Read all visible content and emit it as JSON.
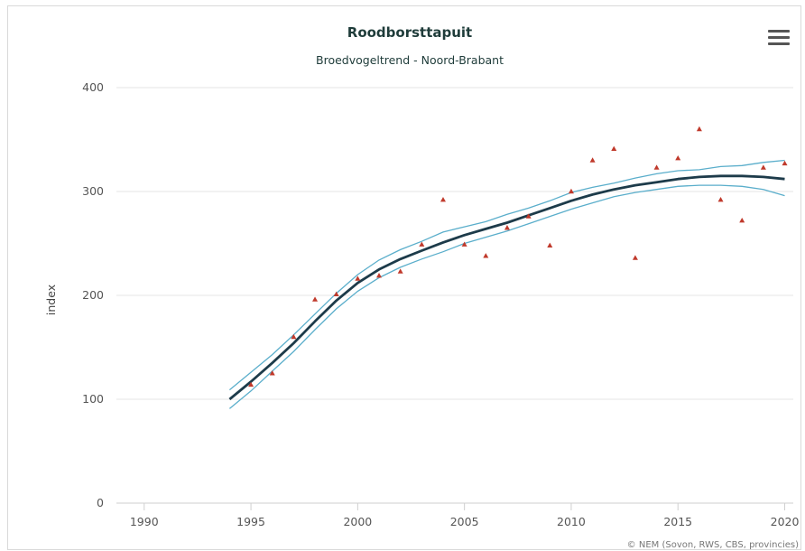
{
  "chart_data": {
    "type": "line",
    "title": "Roodborsttapuit",
    "subtitle": "Broedvogeltrend - Noord-Brabant",
    "xlabel": "",
    "ylabel": "index",
    "xlim": [
      1988.7,
      2020.4
    ],
    "ylim": [
      0,
      400
    ],
    "x_ticks": [
      1990,
      1995,
      2000,
      2005,
      2010,
      2015,
      2020
    ],
    "y_ticks": [
      0,
      100,
      200,
      300,
      400
    ],
    "grid": "horizontal",
    "credits": "© NEM (Sovon, RWS, CBS, provincies)",
    "colors": {
      "trend": "#1d3b4a",
      "band": "#5aaecb",
      "points": "#c0392b",
      "grid": "#e6e6e6",
      "title": "#1f3c3a"
    },
    "series": [
      {
        "kind": "trend",
        "x": [
          1994,
          1995,
          1996,
          1997,
          1998,
          1999,
          2000,
          2001,
          2002,
          2003,
          2004,
          2005,
          2006,
          2007,
          2008,
          2009,
          2010,
          2011,
          2012,
          2013,
          2014,
          2015,
          2016,
          2017,
          2018,
          2019,
          2020
        ],
        "values": [
          100,
          117,
          135,
          154,
          175,
          195,
          212,
          225,
          235,
          243,
          251,
          258,
          264,
          270,
          277,
          284,
          291,
          297,
          302,
          306,
          309,
          312,
          314,
          315,
          315,
          314,
          312
        ]
      },
      {
        "kind": "upper",
        "x": [
          1994,
          1995,
          1996,
          1997,
          1998,
          1999,
          2000,
          2001,
          2002,
          2003,
          2004,
          2005,
          2006,
          2007,
          2008,
          2009,
          2010,
          2011,
          2012,
          2013,
          2014,
          2015,
          2016,
          2017,
          2018,
          2019,
          2020
        ],
        "values": [
          109,
          126,
          143,
          162,
          182,
          202,
          220,
          234,
          244,
          252,
          261,
          266,
          271,
          278,
          284,
          291,
          299,
          304,
          308,
          313,
          317,
          320,
          321,
          324,
          325,
          328,
          330
        ]
      },
      {
        "kind": "lower",
        "x": [
          1994,
          1995,
          1996,
          1997,
          1998,
          1999,
          2000,
          2001,
          2002,
          2003,
          2004,
          2005,
          2006,
          2007,
          2008,
          2009,
          2010,
          2011,
          2012,
          2013,
          2014,
          2015,
          2016,
          2017,
          2018,
          2019,
          2020
        ],
        "values": [
          91,
          108,
          127,
          146,
          167,
          187,
          204,
          217,
          227,
          235,
          242,
          250,
          256,
          262,
          269,
          276,
          283,
          289,
          295,
          299,
          302,
          305,
          306,
          306,
          305,
          302,
          296
        ]
      },
      {
        "kind": "observed",
        "x": [
          1995,
          1996,
          1997,
          1998,
          1999,
          2000,
          2001,
          2002,
          2003,
          2004,
          2005,
          2006,
          2007,
          2008,
          2009,
          2010,
          2011,
          2012,
          2013,
          2014,
          2015,
          2016,
          2017,
          2018,
          2019,
          2020
        ],
        "values": [
          114,
          125,
          160,
          196,
          201,
          216,
          219,
          223,
          249,
          292,
          249,
          238,
          265,
          276,
          248,
          300,
          330,
          341,
          236,
          323,
          332,
          360,
          292,
          272,
          323,
          327
        ]
      }
    ]
  }
}
